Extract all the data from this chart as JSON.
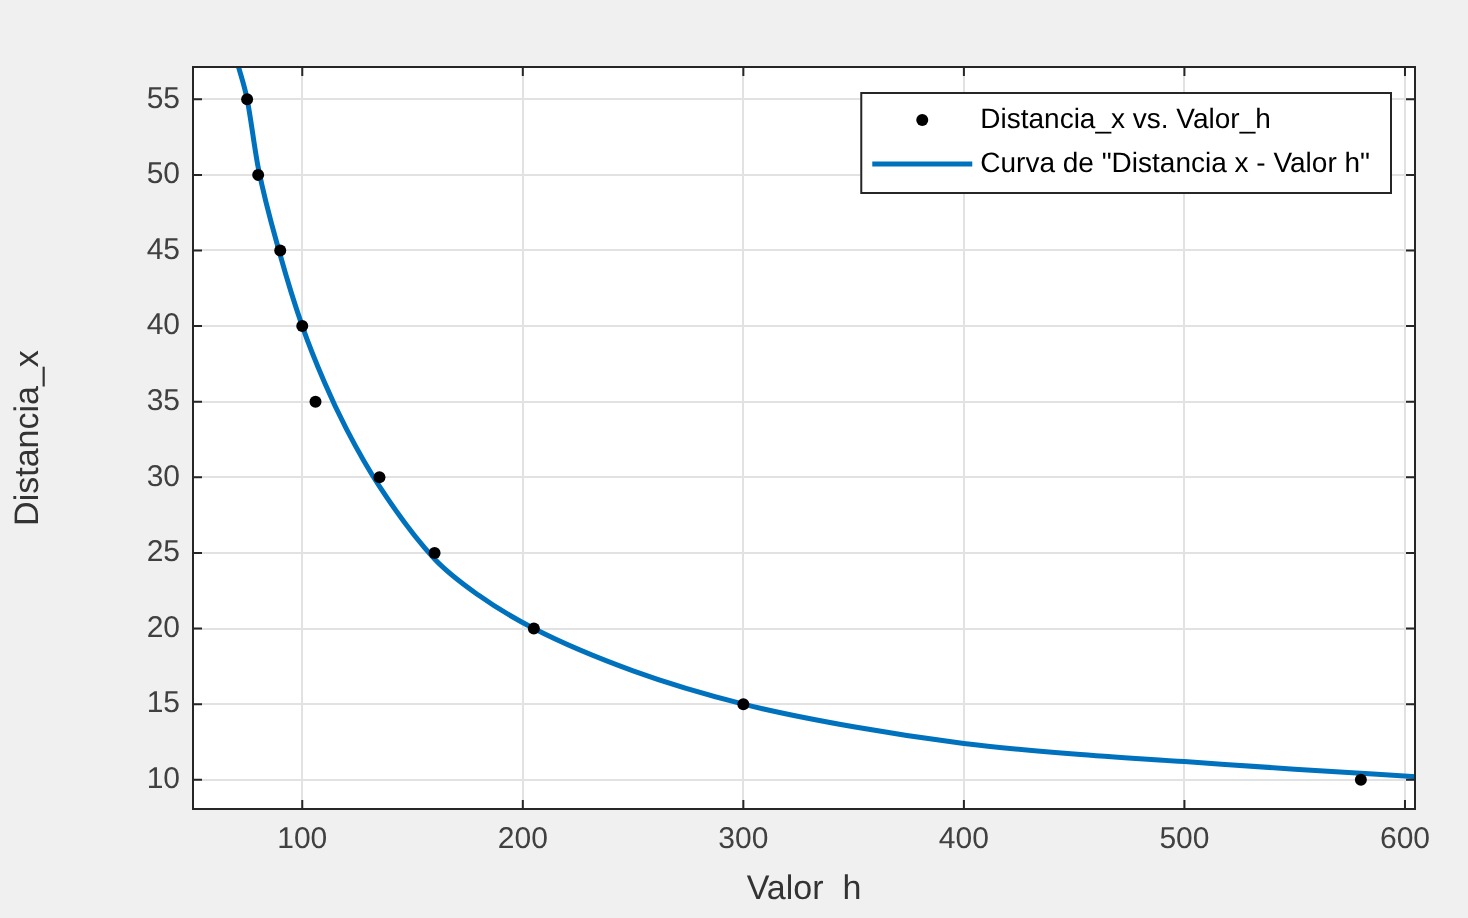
{
  "chart_data": {
    "type": "scatter",
    "xlabel": "Valor  h",
    "ylabel": "Distancia_x",
    "xlim": [
      50,
      605
    ],
    "ylim": [
      8,
      57.2
    ],
    "xticks": [
      100,
      200,
      300,
      400,
      500,
      600
    ],
    "yticks": [
      10,
      15,
      20,
      25,
      30,
      35,
      40,
      45,
      50,
      55
    ],
    "grid": true,
    "legend": "top right",
    "marker": "circle",
    "series": [
      {
        "name": "Distancia_x vs. Valor_h",
        "type": "scatter",
        "color": "#000000",
        "x": [
          75,
          80,
          90,
          100,
          106,
          135,
          160,
          205,
          300,
          580
        ],
        "values": [
          55,
          50,
          45,
          40,
          35,
          30,
          25,
          20,
          15,
          10
        ]
      },
      {
        "name": "Curva de \"Distancia x - Valor h\"",
        "type": "line",
        "marker": "none",
        "color": "#0072bd",
        "x": [
          71,
          75,
          80,
          90,
          100,
          110,
          120,
          135,
          160,
          180,
          205,
          250,
          300,
          350,
          400,
          450,
          500,
          550,
          605
        ],
        "values": [
          57.2,
          55,
          50.5,
          44.7,
          40,
          36.3,
          33.2,
          29.4,
          24.6,
          22.2,
          20,
          17.2,
          15,
          13.5,
          12.4,
          11.7,
          11.2,
          10.7,
          10.2
        ]
      }
    ]
  }
}
